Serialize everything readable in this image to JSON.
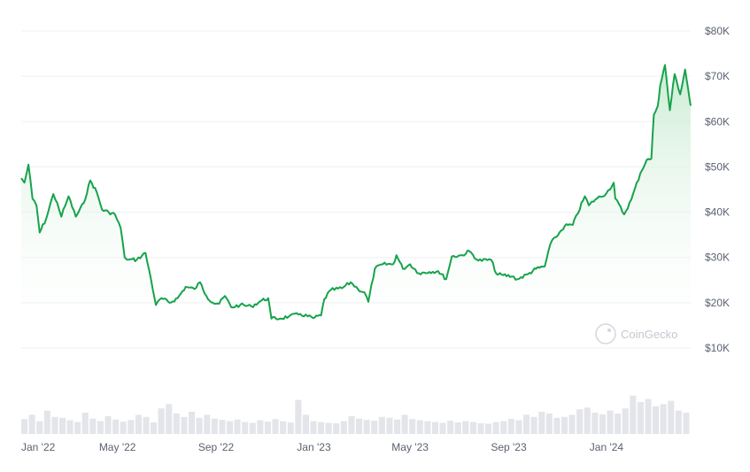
{
  "chart_data": {
    "type": "area",
    "title": "",
    "xlabel": "",
    "ylabel": "",
    "ylim": [
      10000,
      80000
    ],
    "y_ticks": [
      10000,
      20000,
      30000,
      40000,
      50000,
      60000,
      70000,
      80000
    ],
    "y_tick_labels": [
      "$10K",
      "$20K",
      "$30K",
      "$40K",
      "$50K",
      "$60K",
      "$70K",
      "$80K"
    ],
    "x_range": [
      "2022-01-01",
      "2024-04-15"
    ],
    "x_ticks": [
      "2022-01-01",
      "2022-05-01",
      "2022-09-01",
      "2023-01-01",
      "2023-05-01",
      "2023-09-01",
      "2024-01-01"
    ],
    "x_tick_labels": [
      "Jan '22",
      "May '22",
      "Sep '22",
      "Jan '23",
      "May '23",
      "Sep '23",
      "Jan '24"
    ],
    "grid": true,
    "series": [
      {
        "values": [
          [
            "2022-01-01",
            47500
          ],
          [
            "2022-01-05",
            46500
          ],
          [
            "2022-01-10",
            50500
          ],
          [
            "2022-01-15",
            43000
          ],
          [
            "2022-01-20",
            41500
          ],
          [
            "2022-01-24",
            35500
          ],
          [
            "2022-02-01",
            38500
          ],
          [
            "2022-02-10",
            44000
          ],
          [
            "2022-02-15",
            42000
          ],
          [
            "2022-02-20",
            39000
          ],
          [
            "2022-02-25",
            41500
          ],
          [
            "2022-03-01",
            43500
          ],
          [
            "2022-03-10",
            39000
          ],
          [
            "2022-03-20",
            42000
          ],
          [
            "2022-03-28",
            47000
          ],
          [
            "2022-04-05",
            44500
          ],
          [
            "2022-04-12",
            40500
          ],
          [
            "2022-04-20",
            40000
          ],
          [
            "2022-04-28",
            39500
          ],
          [
            "2022-05-05",
            36500
          ],
          [
            "2022-05-10",
            30000
          ],
          [
            "2022-05-15",
            29500
          ],
          [
            "2022-05-25",
            29500
          ],
          [
            "2022-06-05",
            31000
          ],
          [
            "2022-06-12",
            25000
          ],
          [
            "2022-06-18",
            19500
          ],
          [
            "2022-06-25",
            21000
          ],
          [
            "2022-07-05",
            20000
          ],
          [
            "2022-07-15",
            21000
          ],
          [
            "2022-07-25",
            23500
          ],
          [
            "2022-08-05",
            23000
          ],
          [
            "2022-08-12",
            24500
          ],
          [
            "2022-08-20",
            21500
          ],
          [
            "2022-08-28",
            20000
          ],
          [
            "2022-09-05",
            19800
          ],
          [
            "2022-09-12",
            21500
          ],
          [
            "2022-09-20",
            19000
          ],
          [
            "2022-10-01",
            19500
          ],
          [
            "2022-10-15",
            19200
          ],
          [
            "2022-10-28",
            20500
          ],
          [
            "2022-11-05",
            21000
          ],
          [
            "2022-11-09",
            16500
          ],
          [
            "2022-11-20",
            16500
          ],
          [
            "2022-12-01",
            17000
          ],
          [
            "2022-12-15",
            17500
          ],
          [
            "2022-12-31",
            16600
          ],
          [
            "2023-01-10",
            17200
          ],
          [
            "2023-01-14",
            20800
          ],
          [
            "2023-01-22",
            22800
          ],
          [
            "2023-02-05",
            23200
          ],
          [
            "2023-02-16",
            24500
          ],
          [
            "2023-02-25",
            23000
          ],
          [
            "2023-03-05",
            22300
          ],
          [
            "2023-03-10",
            20200
          ],
          [
            "2023-03-18",
            27500
          ],
          [
            "2023-03-28",
            28500
          ],
          [
            "2023-04-10",
            28500
          ],
          [
            "2023-04-14",
            30500
          ],
          [
            "2023-04-22",
            27500
          ],
          [
            "2023-05-01",
            28500
          ],
          [
            "2023-05-12",
            26500
          ],
          [
            "2023-05-25",
            26800
          ],
          [
            "2023-06-05",
            27000
          ],
          [
            "2023-06-15",
            25200
          ],
          [
            "2023-06-22",
            30200
          ],
          [
            "2023-07-05",
            30500
          ],
          [
            "2023-07-14",
            31400
          ],
          [
            "2023-07-25",
            29300
          ],
          [
            "2023-08-10",
            29500
          ],
          [
            "2023-08-17",
            26300
          ],
          [
            "2023-08-25",
            26100
          ],
          [
            "2023-09-05",
            25800
          ],
          [
            "2023-09-12",
            25200
          ],
          [
            "2023-09-25",
            26300
          ],
          [
            "2023-10-05",
            27500
          ],
          [
            "2023-10-16",
            28000
          ],
          [
            "2023-10-23",
            33000
          ],
          [
            "2023-10-30",
            34500
          ],
          [
            "2023-11-10",
            37000
          ],
          [
            "2023-11-20",
            37200
          ],
          [
            "2023-12-05",
            43500
          ],
          [
            "2023-12-10",
            41500
          ],
          [
            "2023-12-18",
            42800
          ],
          [
            "2024-01-01",
            44200
          ],
          [
            "2024-01-10",
            46500
          ],
          [
            "2024-01-12",
            43000
          ],
          [
            "2024-01-23",
            39500
          ],
          [
            "2024-02-01",
            42800
          ],
          [
            "2024-02-12",
            48500
          ],
          [
            "2024-02-20",
            51500
          ],
          [
            "2024-02-26",
            51800
          ],
          [
            "2024-02-29",
            61500
          ],
          [
            "2024-03-05",
            63500
          ],
          [
            "2024-03-08",
            68000
          ],
          [
            "2024-03-14",
            72500
          ],
          [
            "2024-03-20",
            62500
          ],
          [
            "2024-03-26",
            70500
          ],
          [
            "2024-04-02",
            66000
          ],
          [
            "2024-04-08",
            71500
          ],
          [
            "2024-04-12",
            67000
          ],
          [
            "2024-04-15",
            63500
          ]
        ]
      }
    ],
    "volume": {
      "note_units": "relative",
      "values": [
        0.35,
        0.45,
        0.3,
        0.55,
        0.4,
        0.38,
        0.32,
        0.28,
        0.5,
        0.36,
        0.3,
        0.42,
        0.34,
        0.29,
        0.33,
        0.45,
        0.4,
        0.27,
        0.6,
        0.7,
        0.48,
        0.4,
        0.52,
        0.38,
        0.45,
        0.36,
        0.33,
        0.3,
        0.34,
        0.28,
        0.26,
        0.32,
        0.29,
        0.35,
        0.3,
        0.27,
        0.8,
        0.45,
        0.3,
        0.28,
        0.26,
        0.25,
        0.3,
        0.42,
        0.36,
        0.33,
        0.31,
        0.4,
        0.38,
        0.34,
        0.45,
        0.35,
        0.32,
        0.3,
        0.28,
        0.26,
        0.31,
        0.27,
        0.3,
        0.28,
        0.25,
        0.24,
        0.28,
        0.3,
        0.35,
        0.32,
        0.45,
        0.4,
        0.52,
        0.48,
        0.38,
        0.4,
        0.45,
        0.58,
        0.62,
        0.5,
        0.46,
        0.55,
        0.48,
        0.6,
        0.9,
        0.75,
        0.82,
        0.65,
        0.7,
        0.78,
        0.55,
        0.5
      ]
    }
  },
  "watermark": {
    "text": "CoinGecko"
  },
  "colors": {
    "line": "#16a34a",
    "area_top": "#cfeed7",
    "grid": "#eef0f3",
    "volume": "#e3e5ea",
    "axis_text": "#5a6270",
    "watermark": "#c3c8cf"
  }
}
